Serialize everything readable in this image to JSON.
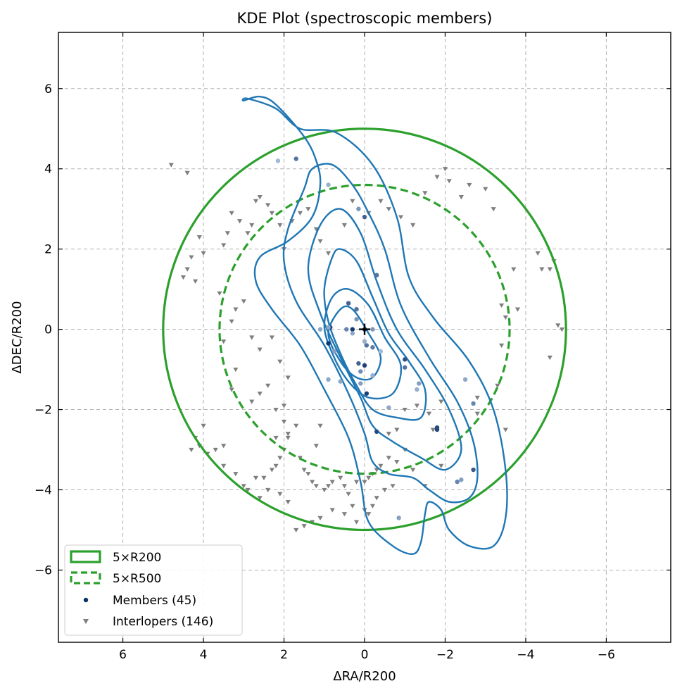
{
  "chart_data": {
    "type": "scatter",
    "title": "KDE Plot (spectroscopic members)",
    "xlabel": "ΔRA/R200",
    "ylabel": "ΔDEC/R200",
    "xlim": [
      7.6,
      -7.6
    ],
    "ylim": [
      -7.8,
      7.4
    ],
    "x_inverted": true,
    "xticks": [
      6,
      4,
      2,
      0,
      -2,
      -4,
      -6
    ],
    "yticks": [
      6,
      4,
      2,
      0,
      -2,
      -4,
      -6
    ],
    "xtick_labels": [
      "6",
      "4",
      "2",
      "0",
      "−2",
      "−4",
      "−6"
    ],
    "ytick_labels": [
      "6",
      "4",
      "2",
      "0",
      "−2",
      "−4",
      "−6"
    ],
    "grid": true,
    "legend_position": "lower-left",
    "colors": {
      "circle": "#2ca02c",
      "kde": "#1f77b4",
      "members_legend": "#08306b",
      "interlopers": "#7f7f7f"
    },
    "center": [
      0,
      0
    ],
    "circles": [
      {
        "label": "5×R200",
        "radius": 5.0,
        "style": "solid"
      },
      {
        "label": "5×R500",
        "radius": 3.6,
        "style": "dashed"
      }
    ],
    "kde_contours": [
      {
        "level": 1,
        "points": [
          [
            3.0,
            5.7
          ],
          [
            2.6,
            5.8
          ],
          [
            2.2,
            5.6
          ],
          [
            1.5,
            4.8
          ],
          [
            1.2,
            4.2
          ],
          [
            1.1,
            3.6
          ],
          [
            1.3,
            2.8
          ],
          [
            1.9,
            2.2
          ],
          [
            2.6,
            1.8
          ],
          [
            2.7,
            1.2
          ],
          [
            2.3,
            0.5
          ],
          [
            1.6,
            -0.4
          ],
          [
            1.0,
            -1.5
          ],
          [
            0.4,
            -2.7
          ],
          [
            0.1,
            -3.8
          ],
          [
            -0.1,
            -4.8
          ],
          [
            -0.7,
            -5.4
          ],
          [
            -1.2,
            -5.6
          ],
          [
            -1.4,
            -5.3
          ],
          [
            -1.5,
            -4.6
          ],
          [
            -1.6,
            -4.3
          ],
          [
            -1.9,
            -4.5
          ],
          [
            -2.1,
            -5.0
          ],
          [
            -2.6,
            -5.4
          ],
          [
            -3.2,
            -5.4
          ],
          [
            -3.5,
            -4.7
          ],
          [
            -3.5,
            -3.5
          ],
          [
            -3.2,
            -2.0
          ],
          [
            -2.6,
            -0.8
          ],
          [
            -1.7,
            0.3
          ],
          [
            -1.1,
            1.3
          ],
          [
            -0.8,
            2.8
          ],
          [
            -0.2,
            4.1
          ],
          [
            0.7,
            4.9
          ],
          [
            1.6,
            5.0
          ],
          [
            2.2,
            5.5
          ],
          [
            2.9,
            5.75
          ],
          [
            3.0,
            5.7
          ]
        ]
      },
      {
        "level": 2,
        "points": [
          [
            1.3,
            4.0
          ],
          [
            1.5,
            3.5
          ],
          [
            1.9,
            2.5
          ],
          [
            2.0,
            1.7
          ],
          [
            1.7,
            0.7
          ],
          [
            1.0,
            -0.4
          ],
          [
            0.4,
            -1.6
          ],
          [
            0.0,
            -2.6
          ],
          [
            -0.2,
            -3.3
          ],
          [
            -0.6,
            -3.6
          ],
          [
            -1.2,
            -3.7
          ],
          [
            -1.6,
            -4.0
          ],
          [
            -2.1,
            -4.3
          ],
          [
            -2.6,
            -4.2
          ],
          [
            -2.8,
            -3.7
          ],
          [
            -2.7,
            -2.8
          ],
          [
            -2.3,
            -1.8
          ],
          [
            -1.6,
            -0.7
          ],
          [
            -0.9,
            0.6
          ],
          [
            -0.5,
            2.0
          ],
          [
            -0.1,
            2.9
          ],
          [
            0.3,
            3.6
          ],
          [
            0.8,
            4.1
          ],
          [
            1.3,
            4.0
          ]
        ]
      },
      {
        "level": 3,
        "points": [
          [
            1.1,
            2.6
          ],
          [
            1.4,
            1.5
          ],
          [
            1.1,
            0.4
          ],
          [
            0.6,
            -0.7
          ],
          [
            0.1,
            -1.7
          ],
          [
            -0.2,
            -2.4
          ],
          [
            -0.7,
            -2.8
          ],
          [
            -1.4,
            -3.2
          ],
          [
            -2.0,
            -3.5
          ],
          [
            -2.4,
            -3.0
          ],
          [
            -2.1,
            -2.0
          ],
          [
            -1.5,
            -1.0
          ],
          [
            -0.8,
            0.0
          ],
          [
            -0.3,
            1.2
          ],
          [
            0.1,
            2.4
          ],
          [
            0.6,
            3.0
          ],
          [
            1.1,
            2.6
          ]
        ]
      },
      {
        "level": 4,
        "points": [
          [
            0.8,
            1.8
          ],
          [
            1.0,
            1.0
          ],
          [
            0.9,
            0.2
          ],
          [
            0.6,
            -0.6
          ],
          [
            0.2,
            -1.4
          ],
          [
            -0.2,
            -2.0
          ],
          [
            -0.8,
            -2.2
          ],
          [
            -1.4,
            -2.2
          ],
          [
            -1.5,
            -1.5
          ],
          [
            -1.1,
            -0.8
          ],
          [
            -0.6,
            -0.1
          ],
          [
            -0.2,
            0.8
          ],
          [
            0.2,
            1.7
          ],
          [
            0.6,
            2.0
          ],
          [
            0.8,
            1.8
          ]
        ]
      },
      {
        "level": 5,
        "points": [
          [
            0.8,
            0.8
          ],
          [
            1.0,
            0.1
          ],
          [
            0.8,
            -0.6
          ],
          [
            0.4,
            -1.3
          ],
          [
            -0.1,
            -1.7
          ],
          [
            -0.7,
            -1.6
          ],
          [
            -0.9,
            -0.9
          ],
          [
            -0.5,
            -0.2
          ],
          [
            -0.1,
            0.6
          ],
          [
            0.4,
            1.0
          ],
          [
            0.8,
            0.8
          ]
        ]
      },
      {
        "level": 6,
        "points": [
          [
            0.6,
            0.5
          ],
          [
            0.9,
            -0.1
          ],
          [
            0.6,
            -0.8
          ],
          [
            0.2,
            -1.2
          ],
          [
            -0.2,
            -1.2
          ],
          [
            -0.4,
            -0.7
          ],
          [
            -0.1,
            -0.1
          ],
          [
            0.3,
            0.5
          ],
          [
            0.6,
            0.5
          ]
        ]
      }
    ],
    "members": [
      [
        0.0,
        0.0
      ],
      [
        0.3,
        0.0
      ],
      [
        0.85,
        0.05
      ],
      [
        0.9,
        0.05
      ],
      [
        0.9,
        -0.35
      ],
      [
        0.15,
        -0.85
      ],
      [
        0.0,
        -0.9
      ],
      [
        -0.05,
        -0.4
      ],
      [
        0.0,
        -0.3
      ],
      [
        0.2,
        0.25
      ],
      [
        0.45,
        0.0
      ],
      [
        0.4,
        0.65
      ],
      [
        0.75,
        -0.55
      ],
      [
        0.6,
        -1.3
      ],
      [
        0.1,
        -1.05
      ],
      [
        -0.4,
        -0.55
      ],
      [
        -1.0,
        -0.75
      ],
      [
        -0.05,
        -1.6
      ],
      [
        -0.2,
        -1.15
      ],
      [
        -0.3,
        -2.55
      ],
      [
        -0.3,
        1.35
      ],
      [
        -1.35,
        -1.35
      ],
      [
        -1.3,
        -1.5
      ],
      [
        -1.8,
        -2.5
      ],
      [
        -1.8,
        -2.45
      ],
      [
        -2.7,
        -3.5
      ],
      [
        -2.4,
        -3.75
      ],
      [
        -2.3,
        -3.8
      ],
      [
        -2.5,
        -1.25
      ],
      [
        -2.7,
        -1.85
      ],
      [
        -0.85,
        -4.7
      ],
      [
        -0.6,
        -1.95
      ],
      [
        0.0,
        2.8
      ],
      [
        0.15,
        3.0
      ],
      [
        0.9,
        3.6
      ],
      [
        1.7,
        4.25
      ],
      [
        2.15,
        4.2
      ],
      [
        1.1,
        0.0
      ],
      [
        0.2,
        0.5
      ],
      [
        -0.2,
        -0.45
      ],
      [
        0.1,
        -1.35
      ],
      [
        0.3,
        -0.1
      ],
      [
        -1.0,
        -0.95
      ],
      [
        0.9,
        -1.25
      ],
      [
        -0.2,
        0.0
      ]
    ],
    "member_shades": [
      0.95,
      0.95,
      0.8,
      0.3,
      0.95,
      0.7,
      0.9,
      0.6,
      0.25,
      0.4,
      0.5,
      0.7,
      0.35,
      0.3,
      0.45,
      0.2,
      0.8,
      0.9,
      0.25,
      0.85,
      0.6,
      0.35,
      0.25,
      0.9,
      0.85,
      0.75,
      0.35,
      0.5,
      0.3,
      0.5,
      0.35,
      0.3,
      0.7,
      0.4,
      0.25,
      0.6,
      0.2,
      0.3,
      0.6,
      0.55,
      0.35,
      0.3,
      0.6,
      0.3,
      0.4
    ],
    "interlopers": [
      [
        4.8,
        4.1
      ],
      [
        4.4,
        3.9
      ],
      [
        4.1,
        2.3
      ],
      [
        4.0,
        1.9
      ],
      [
        4.3,
        1.8
      ],
      [
        4.4,
        1.5
      ],
      [
        4.5,
        1.3
      ],
      [
        4.2,
        1.2
      ],
      [
        3.5,
        2.1
      ],
      [
        3.4,
        2.4
      ],
      [
        3.3,
        2.9
      ],
      [
        3.1,
        2.7
      ],
      [
        2.9,
        2.4
      ],
      [
        2.8,
        2.6
      ],
      [
        2.7,
        3.2
      ],
      [
        2.6,
        3.3
      ],
      [
        2.4,
        3.1
      ],
      [
        2.3,
        2.9
      ],
      [
        2.1,
        2.6
      ],
      [
        2.0,
        2.0
      ],
      [
        1.8,
        2.7
      ],
      [
        1.6,
        2.9
      ],
      [
        1.4,
        3.0
      ],
      [
        1.2,
        2.5
      ],
      [
        1.1,
        2.2
      ],
      [
        0.9,
        1.9
      ],
      [
        0.5,
        2.6
      ],
      [
        0.3,
        3.2
      ],
      [
        -0.1,
        2.9
      ],
      [
        -0.4,
        3.2
      ],
      [
        -0.6,
        3.0
      ],
      [
        -0.9,
        2.8
      ],
      [
        -1.2,
        2.6
      ],
      [
        -1.5,
        3.4
      ],
      [
        -1.8,
        3.8
      ],
      [
        -2.0,
        4.0
      ],
      [
        -2.1,
        3.7
      ],
      [
        -2.4,
        3.3
      ],
      [
        -2.6,
        3.6
      ],
      [
        -3.0,
        3.5
      ],
      [
        -3.2,
        3.0
      ],
      [
        -4.3,
        1.9
      ],
      [
        -4.4,
        1.5
      ],
      [
        -4.6,
        1.5
      ],
      [
        -4.7,
        1.7
      ],
      [
        -4.8,
        0.1
      ],
      [
        -4.9,
        0.0
      ],
      [
        -4.6,
        -0.7
      ],
      [
        -3.7,
        1.5
      ],
      [
        -3.8,
        0.5
      ],
      [
        -3.4,
        0.6
      ],
      [
        -3.5,
        0.3
      ],
      [
        3.6,
        0.9
      ],
      [
        3.5,
        -0.3
      ],
      [
        3.3,
        0.2
      ],
      [
        3.2,
        0.5
      ],
      [
        3.0,
        0.7
      ],
      [
        2.8,
        -0.2
      ],
      [
        2.6,
        -0.5
      ],
      [
        2.3,
        -0.2
      ],
      [
        1.9,
        -1.2
      ],
      [
        2.1,
        -0.8
      ],
      [
        2.4,
        -1.4
      ],
      [
        2.6,
        -1.6
      ],
      [
        2.8,
        -1.8
      ],
      [
        3.2,
        -1.0
      ],
      [
        3.3,
        -1.5
      ],
      [
        4.0,
        -2.4
      ],
      [
        4.2,
        -2.7
      ],
      [
        4.1,
        -2.9
      ],
      [
        4.3,
        -3.0
      ],
      [
        3.9,
        -3.1
      ],
      [
        3.7,
        -3.0
      ],
      [
        3.5,
        -3.4
      ],
      [
        3.2,
        -3.6
      ],
      [
        3.0,
        -3.9
      ],
      [
        2.9,
        -4.0
      ],
      [
        2.7,
        -3.7
      ],
      [
        2.5,
        -3.7
      ],
      [
        2.3,
        -3.5
      ],
      [
        2.2,
        -3.4
      ],
      [
        2.1,
        -3.2
      ],
      [
        2.0,
        -3.0
      ],
      [
        1.9,
        -2.7
      ],
      [
        2.2,
        -2.7
      ],
      [
        2.0,
        -2.3
      ],
      [
        2.2,
        -2.0
      ],
      [
        2.0,
        -1.9
      ],
      [
        1.9,
        -2.6
      ],
      [
        1.7,
        -2.4
      ],
      [
        1.6,
        -3.2
      ],
      [
        1.5,
        -3.5
      ],
      [
        1.4,
        -3.6
      ],
      [
        1.3,
        -3.8
      ],
      [
        1.2,
        -3.9
      ],
      [
        1.0,
        -4.0
      ],
      [
        0.9,
        -3.9
      ],
      [
        0.8,
        -3.8
      ],
      [
        0.6,
        -3.7
      ],
      [
        0.5,
        -3.9
      ],
      [
        0.4,
        -4.1
      ],
      [
        0.3,
        -4.4
      ],
      [
        0.2,
        -3.8
      ],
      [
        0.0,
        -3.8
      ],
      [
        -0.1,
        -3.7
      ],
      [
        -0.2,
        -3.6
      ],
      [
        -0.3,
        -3.5
      ],
      [
        -0.4,
        -3.4
      ],
      [
        -0.6,
        -3.2
      ],
      [
        -0.7,
        -3.9
      ],
      [
        -0.5,
        -4.0
      ],
      [
        -0.3,
        -4.2
      ],
      [
        -0.2,
        -4.4
      ],
      [
        -0.1,
        -4.6
      ],
      [
        0.0,
        -4.5
      ],
      [
        0.2,
        -4.8
      ],
      [
        0.5,
        -4.6
      ],
      [
        0.8,
        -4.5
      ],
      [
        1.1,
        -4.7
      ],
      [
        1.3,
        -4.8
      ],
      [
        1.5,
        -4.9
      ],
      [
        1.7,
        -5.0
      ],
      [
        1.9,
        -4.3
      ],
      [
        2.1,
        -4.1
      ],
      [
        2.4,
        -4.0
      ],
      [
        2.6,
        -4.2
      ],
      [
        -1.0,
        -2.0
      ],
      [
        -1.3,
        -1.9
      ],
      [
        -1.6,
        -2.1
      ],
      [
        -1.9,
        -1.8
      ],
      [
        -1.0,
        -3.0
      ],
      [
        -1.2,
        -3.5
      ],
      [
        -0.8,
        -3.3
      ],
      [
        -1.5,
        -3.9
      ],
      [
        -1.9,
        -3.4
      ],
      [
        -1.7,
        -2.5
      ],
      [
        -0.8,
        -2.5
      ],
      [
        -0.6,
        -2.6
      ],
      [
        1.1,
        -2.4
      ],
      [
        1.2,
        -2.9
      ],
      [
        3.5,
        -2.9
      ],
      [
        -3.5,
        -2.5
      ],
      [
        -3.4,
        -0.4
      ],
      [
        -3.3,
        -1.4
      ],
      [
        -2.8,
        -1.7
      ],
      [
        -2.8,
        -2.1
      ]
    ],
    "legend": [
      {
        "label": "5×R200",
        "marker": "rect-solid"
      },
      {
        "label": "5×R500",
        "marker": "rect-dashed"
      },
      {
        "label": "Members (45)",
        "marker": "dot"
      },
      {
        "label": "Interlopers (146)",
        "marker": "triangle-down"
      }
    ]
  }
}
